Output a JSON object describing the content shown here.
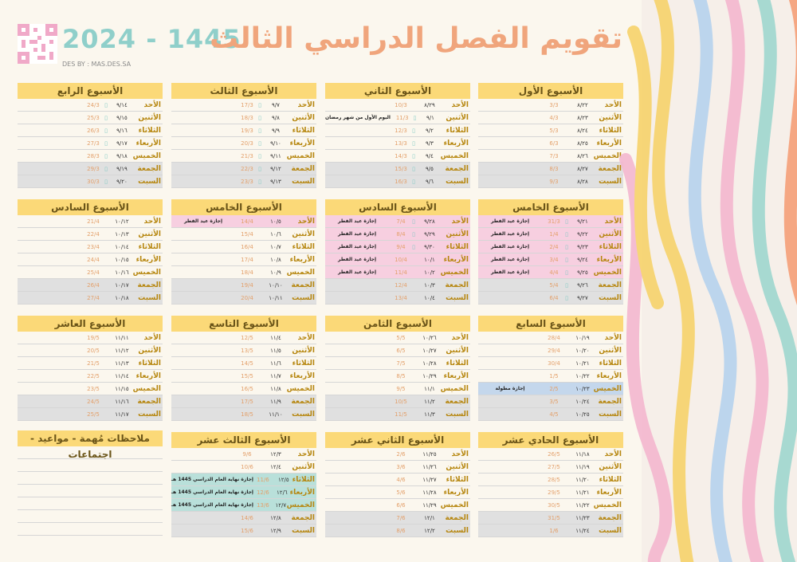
{
  "header": {
    "title": "تقويم الفصل الدراسي الثالث",
    "year": "2024 - 1445",
    "designer": "DES BY : MAS.DES.SA"
  },
  "days": [
    "الأحد",
    "الأثنين",
    "الثلاثاء",
    "الأربعاء",
    "الخميس",
    "الجمعة",
    "السبت"
  ],
  "icon": "lantern-icon",
  "colors": {
    "header": "#fbd978",
    "weekend": "#e0e0e0",
    "holiday": "#f7cfe0",
    "long_holiday": "#c4d7ec",
    "end_year": "#b9e0da"
  },
  "weeks": [
    {
      "title": "الأسبوع الأول",
      "rows": [
        {
          "h": "٨/٢٢",
          "g": "3/3"
        },
        {
          "h": "٨/٢٣",
          "g": "4/3"
        },
        {
          "h": "٨/٢٤",
          "g": "5/3"
        },
        {
          "h": "٨/٢٥",
          "g": "6/3"
        },
        {
          "h": "٨/٢٦",
          "g": "7/3"
        },
        {
          "h": "٨/٢٧",
          "g": "8/3",
          "s": "g"
        },
        {
          "h": "٨/٢٨",
          "g": "9/3",
          "s": "g"
        }
      ]
    },
    {
      "title": "الأسبوع الثاني",
      "rows": [
        {
          "h": "٨/٢٩",
          "g": "10/3"
        },
        {
          "h": "٩/١",
          "g": "11/3",
          "i": 1,
          "n": "اليوم الأول من شهر رمضان"
        },
        {
          "h": "٩/٢",
          "g": "12/3",
          "i": 1
        },
        {
          "h": "٩/٣",
          "g": "13/3",
          "i": 1
        },
        {
          "h": "٩/٤",
          "g": "14/3",
          "i": 1
        },
        {
          "h": "٩/٥",
          "g": "15/3",
          "i": 1,
          "s": "g"
        },
        {
          "h": "٩/٦",
          "g": "16/3",
          "i": 1,
          "s": "g"
        }
      ]
    },
    {
      "title": "الأسبوع الثالث",
      "rows": [
        {
          "h": "٩/٧",
          "g": "17/3",
          "i": 1
        },
        {
          "h": "٩/٨",
          "g": "18/3",
          "i": 1
        },
        {
          "h": "٩/٩",
          "g": "19/3",
          "i": 1
        },
        {
          "h": "٩/١٠",
          "g": "20/3",
          "i": 1
        },
        {
          "h": "٩/١١",
          "g": "21/3",
          "i": 1
        },
        {
          "h": "٩/١٢",
          "g": "22/3",
          "i": 1,
          "s": "g"
        },
        {
          "h": "٩/١٣",
          "g": "23/3",
          "i": 1,
          "s": "g"
        }
      ]
    },
    {
      "title": "الأسبوع الرابع",
      "rows": [
        {
          "h": "٩/١٤",
          "g": "24/3",
          "i": 1
        },
        {
          "h": "٩/١٥",
          "g": "25/3",
          "i": 1
        },
        {
          "h": "٩/١٦",
          "g": "26/3",
          "i": 1
        },
        {
          "h": "٩/١٧",
          "g": "27/3",
          "i": 1
        },
        {
          "h": "٩/١٨",
          "g": "28/3",
          "i": 1
        },
        {
          "h": "٩/١٩",
          "g": "29/3",
          "i": 1,
          "s": "g"
        },
        {
          "h": "٩/٢٠",
          "g": "30/3",
          "i": 1,
          "s": "g"
        }
      ]
    },
    {
      "title": "الأسبوع الخامس",
      "rows": [
        {
          "h": "٩/٢١",
          "g": "31/3",
          "i": 1,
          "n": "إجازة عيد الفطر",
          "s": "pk"
        },
        {
          "h": "٩/٢٢",
          "g": "1/4",
          "i": 1,
          "n": "إجازة عيد الفطر",
          "s": "pk"
        },
        {
          "h": "٩/٢٣",
          "g": "2/4",
          "i": 1,
          "n": "إجازة عيد الفطر",
          "s": "pk"
        },
        {
          "h": "٩/٢٤",
          "g": "3/4",
          "i": 1,
          "n": "إجازة عيد الفطر",
          "s": "pk"
        },
        {
          "h": "٩/٢٥",
          "g": "4/4",
          "i": 1,
          "n": "إجازة عيد الفطر",
          "s": "pk"
        },
        {
          "h": "٩/٢٦",
          "g": "5/4",
          "i": 1,
          "s": "g"
        },
        {
          "h": "٩/٢٧",
          "g": "6/4",
          "i": 1,
          "s": "g"
        }
      ]
    },
    {
      "title": "الأسبوع السادس",
      "rows": [
        {
          "h": "٩/٢٨",
          "g": "7/4",
          "i": 1,
          "n": "إجازة عيد الفطر",
          "s": "pk"
        },
        {
          "h": "٩/٢٩",
          "g": "8/4",
          "i": 1,
          "n": "إجازة عيد الفطر",
          "s": "pk"
        },
        {
          "h": "٩/٣٠",
          "g": "9/4",
          "i": 1,
          "n": "إجازة عيد الفطر",
          "s": "pk"
        },
        {
          "h": "١٠/١",
          "g": "10/4",
          "n": "إجازة عيد الفطر",
          "s": "pk"
        },
        {
          "h": "١٠/٢",
          "g": "11/4",
          "n": "إجازة عيد الفطر",
          "s": "pk"
        },
        {
          "h": "١٠/٣",
          "g": "12/4",
          "s": "g"
        },
        {
          "h": "١٠/٤",
          "g": "13/4",
          "s": "g"
        }
      ]
    },
    {
      "title": "الأسبوع الخامس",
      "rows": [
        {
          "h": "١٠/٥",
          "g": "14/4",
          "n": "إجازة عيد الفطر",
          "s": "pk"
        },
        {
          "h": "١٠/٦",
          "g": "15/4"
        },
        {
          "h": "١٠/٧",
          "g": "16/4"
        },
        {
          "h": "١٠/٨",
          "g": "17/4"
        },
        {
          "h": "١٠/٩",
          "g": "18/4"
        },
        {
          "h": "١٠/١٠",
          "g": "19/4",
          "s": "g"
        },
        {
          "h": "١٠/١١",
          "g": "20/4",
          "s": "g"
        }
      ]
    },
    {
      "title": "الأسبوع السادس",
      "rows": [
        {
          "h": "١٠/١٢",
          "g": "21/4"
        },
        {
          "h": "١٠/١٣",
          "g": "22/4"
        },
        {
          "h": "١٠/١٤",
          "g": "23/4"
        },
        {
          "h": "١٠/١٥",
          "g": "24/4"
        },
        {
          "h": "١٠/١٦",
          "g": "25/4"
        },
        {
          "h": "١٠/١٧",
          "g": "26/4",
          "s": "g"
        },
        {
          "h": "١٠/١٨",
          "g": "27/4",
          "s": "g"
        }
      ]
    },
    {
      "title": "الأسبوع السابع",
      "rows": [
        {
          "h": "١٠/١٩",
          "g": "28/4"
        },
        {
          "h": "١٠/٢٠",
          "g": "29/4"
        },
        {
          "h": "١٠/٢١",
          "g": "30/4"
        },
        {
          "h": "١٠/٢٢",
          "g": "1/5"
        },
        {
          "h": "١٠/٢٣",
          "g": "2/5",
          "n": "إجازة مطولة",
          "s": "bl"
        },
        {
          "h": "١٠/٢٤",
          "g": "3/5",
          "s": "g"
        },
        {
          "h": "١٠/٢٥",
          "g": "4/5",
          "s": "g"
        }
      ]
    },
    {
      "title": "الأسبوع الثامن",
      "rows": [
        {
          "h": "١٠/٢٦",
          "g": "5/5"
        },
        {
          "h": "١٠/٢٧",
          "g": "6/5"
        },
        {
          "h": "١٠/٢٨",
          "g": "7/5"
        },
        {
          "h": "١٠/٢٩",
          "g": "8/5"
        },
        {
          "h": "١١/١",
          "g": "9/5"
        },
        {
          "h": "١١/٢",
          "g": "10/5",
          "s": "g"
        },
        {
          "h": "١١/٣",
          "g": "11/5",
          "s": "g"
        }
      ]
    },
    {
      "title": "الأسبوع التاسع",
      "rows": [
        {
          "h": "١١/٤",
          "g": "12/5"
        },
        {
          "h": "١١/٥",
          "g": "13/5"
        },
        {
          "h": "١١/٦",
          "g": "14/5"
        },
        {
          "h": "١١/٧",
          "g": "15/5"
        },
        {
          "h": "١١/٨",
          "g": "16/5"
        },
        {
          "h": "١١/٩",
          "g": "17/5",
          "s": "g"
        },
        {
          "h": "١١/١٠",
          "g": "18/5",
          "s": "g"
        }
      ]
    },
    {
      "title": "الأسبوع العاشر",
      "rows": [
        {
          "h": "١١/١١",
          "g": "19/5"
        },
        {
          "h": "١١/١٢",
          "g": "20/5"
        },
        {
          "h": "١١/١٣",
          "g": "21/5"
        },
        {
          "h": "١١/١٤",
          "g": "22/5"
        },
        {
          "h": "١١/١٥",
          "g": "23/5"
        },
        {
          "h": "١١/١٦",
          "g": "24/5",
          "s": "g"
        },
        {
          "h": "١١/١٧",
          "g": "25/5",
          "s": "g"
        }
      ]
    },
    {
      "title": "الأسبوع الحادي عشر",
      "rows": [
        {
          "h": "١١/١٨",
          "g": "26/5"
        },
        {
          "h": "١١/١٩",
          "g": "27/5"
        },
        {
          "h": "١١/٢٠",
          "g": "28/5"
        },
        {
          "h": "١١/٢١",
          "g": "29/5"
        },
        {
          "h": "١١/٢٢",
          "g": "30/5"
        },
        {
          "h": "١١/٢٣",
          "g": "31/5",
          "s": "g"
        },
        {
          "h": "١١/٢٤",
          "g": "1/6",
          "s": "g"
        }
      ]
    },
    {
      "title": "الأسبوع الثاني عشر",
      "rows": [
        {
          "h": "١١/٢٥",
          "g": "2/6"
        },
        {
          "h": "١١/٢٦",
          "g": "3/6"
        },
        {
          "h": "١١/٢٧",
          "g": "4/6"
        },
        {
          "h": "١١/٢٨",
          "g": "5/6"
        },
        {
          "h": "١١/٢٩",
          "g": "6/6"
        },
        {
          "h": "١٢/١",
          "g": "7/6",
          "s": "g"
        },
        {
          "h": "١٢/٢",
          "g": "8/6",
          "s": "g"
        }
      ]
    },
    {
      "title": "الأسبوع الثالث عشر",
      "rows": [
        {
          "h": "١٢/٣",
          "g": "9/6"
        },
        {
          "h": "١٢/٤",
          "g": "10/6"
        },
        {
          "h": "١٢/٥",
          "g": "11/6",
          "n": "إجازة نهاية العام الدراسي 1445 هـ",
          "s": "tl"
        },
        {
          "h": "١٢/٦",
          "g": "12/6",
          "n": "إجازة نهاية العام الدراسي 1445 هـ",
          "s": "tl"
        },
        {
          "h": "١٢/٧",
          "g": "13/6",
          "n": "إجازة نهاية العام الدراسي 1445 هـ",
          "s": "tl"
        },
        {
          "h": "١٢/٨",
          "g": "14/6",
          "s": "g"
        },
        {
          "h": "١٢/٩",
          "g": "15/6",
          "s": "g"
        }
      ]
    }
  ],
  "notes": {
    "title": "ملاحظات مُهمة - مواعيد - اجتماعات"
  }
}
